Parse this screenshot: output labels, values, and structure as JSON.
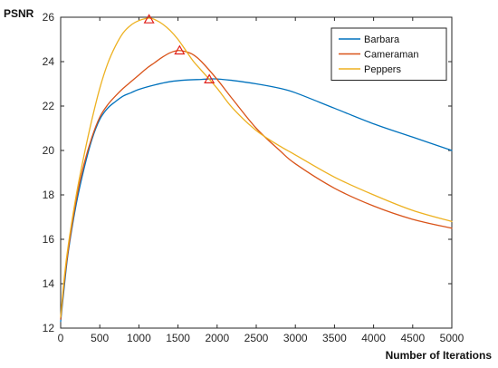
{
  "chart_data": {
    "type": "line",
    "title": "",
    "xlabel": "Number of Iterations",
    "ylabel": "PSNR",
    "xlim": [
      0,
      5000
    ],
    "ylim": [
      12,
      26
    ],
    "xticks": [
      0,
      500,
      1000,
      1500,
      2000,
      2500,
      3000,
      3500,
      4000,
      4500,
      5000
    ],
    "yticks": [
      12,
      14,
      16,
      18,
      20,
      22,
      24,
      26
    ],
    "grid": false,
    "legend_position": "top-right",
    "series": [
      {
        "name": "Barbara",
        "color": "#0072BD",
        "x": [
          0,
          50,
          100,
          200,
          300,
          400,
          500,
          600,
          700,
          800,
          900,
          1000,
          1200,
          1400,
          1600,
          1800,
          1900,
          2000,
          2200,
          2500,
          2800,
          3000,
          3500,
          4000,
          4500,
          5000
        ],
        "y": [
          12.3,
          14.0,
          15.5,
          17.6,
          19.2,
          20.5,
          21.4,
          21.9,
          22.2,
          22.45,
          22.6,
          22.75,
          22.95,
          23.1,
          23.17,
          23.2,
          23.22,
          23.22,
          23.15,
          23.0,
          22.8,
          22.6,
          21.9,
          21.2,
          20.6,
          20.0
        ],
        "peak": {
          "x": 1900,
          "y": 23.2
        }
      },
      {
        "name": "Cameraman",
        "color": "#D95319",
        "x": [
          0,
          50,
          100,
          200,
          300,
          400,
          500,
          600,
          700,
          800,
          900,
          1000,
          1100,
          1200,
          1300,
          1400,
          1500,
          1600,
          1700,
          1800,
          2000,
          2200,
          2500,
          2800,
          3000,
          3500,
          4000,
          4500,
          5000
        ],
        "y": [
          12.4,
          14.2,
          15.6,
          17.8,
          19.4,
          20.6,
          21.5,
          22.05,
          22.45,
          22.8,
          23.1,
          23.4,
          23.7,
          23.95,
          24.2,
          24.4,
          24.5,
          24.45,
          24.3,
          24.0,
          23.2,
          22.3,
          21.0,
          20.0,
          19.4,
          18.3,
          17.5,
          16.9,
          16.5
        ],
        "peak": {
          "x": 1520,
          "y": 24.5
        }
      },
      {
        "name": "Peppers",
        "color": "#EDB120",
        "x": [
          0,
          50,
          100,
          200,
          300,
          400,
          500,
          600,
          700,
          800,
          900,
          1000,
          1100,
          1150,
          1200,
          1300,
          1400,
          1500,
          1600,
          1700,
          1800,
          2000,
          2200,
          2500,
          2800,
          3000,
          3500,
          4000,
          4500,
          5000
        ],
        "y": [
          12.5,
          14.4,
          15.8,
          18.0,
          19.8,
          21.4,
          22.8,
          23.9,
          24.7,
          25.3,
          25.65,
          25.85,
          25.95,
          25.95,
          25.9,
          25.7,
          25.4,
          25.0,
          24.5,
          24.0,
          23.6,
          22.8,
          21.9,
          20.9,
          20.2,
          19.8,
          18.8,
          18.0,
          17.3,
          16.8
        ],
        "peak": {
          "x": 1130,
          "y": 25.9
        }
      }
    ]
  }
}
